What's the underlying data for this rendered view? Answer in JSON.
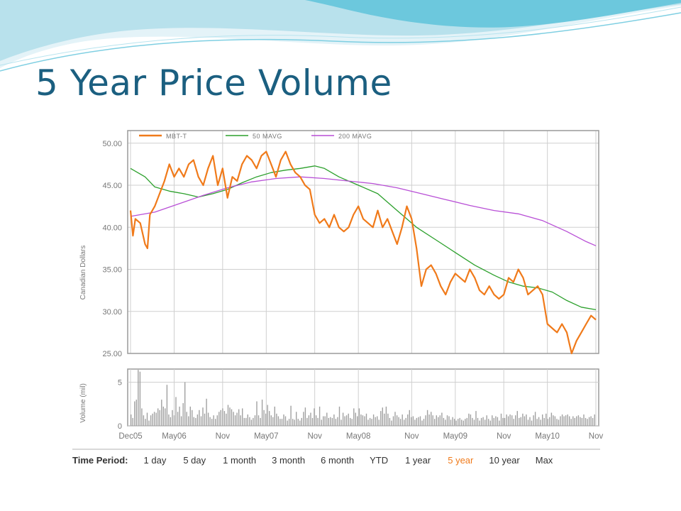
{
  "slide": {
    "title": "5 Year Price Volume"
  },
  "colors": {
    "title": "#1b5f80",
    "price": "#f07a1a",
    "ma50": "#2ca02c",
    "ma200": "#b84fd6",
    "volume": "#a0a0a0",
    "grid": "#cfcfcf"
  },
  "chart_data": [
    {
      "type": "line",
      "title": "",
      "xlabel": "",
      "ylabel": "Canadian Dollars",
      "ylim": [
        25,
        51.5
      ],
      "y_ticks": [
        "50.00",
        "45.00",
        "40.00",
        "35.00",
        "30.00",
        "25.00"
      ],
      "grid": true,
      "legend_position": "top-left",
      "legend": [
        "MBT-T",
        "50 MAVG",
        "200 MAVG"
      ],
      "x_ticks": [
        "Dec05",
        "May06",
        "Nov",
        "May07",
        "Nov",
        "May08",
        "Nov",
        "May09",
        "Nov",
        "May10",
        "Nov"
      ],
      "series": [
        {
          "name": "MBT-T",
          "points": [
            [
              0,
              42.0
            ],
            [
              0.5,
              39.0
            ],
            [
              1,
              41.0
            ],
            [
              2,
              40.5
            ],
            [
              3,
              38.0
            ],
            [
              3.5,
              37.5
            ],
            [
              4,
              41.5
            ],
            [
              5,
              42.5
            ],
            [
              6,
              44.0
            ],
            [
              7,
              45.5
            ],
            [
              8,
              47.5
            ],
            [
              9,
              46.0
            ],
            [
              10,
              47.0
            ],
            [
              11,
              46.0
            ],
            [
              12,
              47.5
            ],
            [
              13,
              48.0
            ],
            [
              14,
              46.0
            ],
            [
              15,
              45.0
            ],
            [
              16,
              47.0
            ],
            [
              17,
              48.5
            ],
            [
              18,
              45.0
            ],
            [
              19,
              47.0
            ],
            [
              20,
              43.5
            ],
            [
              21,
              46.0
            ],
            [
              22,
              45.5
            ],
            [
              23,
              47.5
            ],
            [
              24,
              48.5
            ],
            [
              25,
              48.0
            ],
            [
              26,
              47.0
            ],
            [
              27,
              48.5
            ],
            [
              28,
              49.0
            ],
            [
              29,
              47.5
            ],
            [
              30,
              46.0
            ],
            [
              31,
              48.0
            ],
            [
              32,
              49.0
            ],
            [
              33,
              47.5
            ],
            [
              34,
              46.5
            ],
            [
              35,
              46.0
            ],
            [
              36,
              45.0
            ],
            [
              37,
              44.5
            ],
            [
              38,
              41.5
            ],
            [
              39,
              40.5
            ],
            [
              40,
              41.0
            ],
            [
              41,
              40.0
            ],
            [
              42,
              41.5
            ],
            [
              43,
              40.0
            ],
            [
              44,
              39.5
            ],
            [
              45,
              40.0
            ],
            [
              46,
              41.5
            ],
            [
              47,
              42.5
            ],
            [
              48,
              41.0
            ],
            [
              49,
              40.5
            ],
            [
              50,
              40.0
            ],
            [
              51,
              42.0
            ],
            [
              52,
              40.0
            ],
            [
              53,
              41.0
            ],
            [
              54,
              39.5
            ],
            [
              55,
              38.0
            ],
            [
              56,
              40.0
            ],
            [
              57,
              42.5
            ],
            [
              58,
              41.0
            ],
            [
              59,
              37.5
            ],
            [
              60,
              33.0
            ],
            [
              61,
              35.0
            ],
            [
              62,
              35.5
            ],
            [
              63,
              34.5
            ],
            [
              64,
              33.0
            ],
            [
              65,
              32.0
            ],
            [
              66,
              33.5
            ],
            [
              67,
              34.5
            ],
            [
              68,
              34.0
            ],
            [
              69,
              33.5
            ],
            [
              70,
              35.0
            ],
            [
              71,
              34.0
            ],
            [
              72,
              32.5
            ],
            [
              73,
              32.0
            ],
            [
              74,
              33.0
            ],
            [
              75,
              32.0
            ],
            [
              76,
              31.5
            ],
            [
              77,
              32.0
            ],
            [
              78,
              34.0
            ],
            [
              79,
              33.5
            ],
            [
              80,
              35.0
            ],
            [
              81,
              34.0
            ],
            [
              82,
              32.0
            ],
            [
              83,
              32.5
            ],
            [
              84,
              33.0
            ],
            [
              85,
              32.0
            ],
            [
              86,
              28.5
            ],
            [
              87,
              28.0
            ],
            [
              88,
              27.5
            ],
            [
              89,
              28.5
            ],
            [
              90,
              27.5
            ],
            [
              91,
              25.0
            ],
            [
              92,
              26.5
            ],
            [
              93,
              27.5
            ],
            [
              94,
              28.5
            ],
            [
              95,
              29.5
            ],
            [
              96,
              29.0
            ]
          ]
        },
        {
          "name": "50 MAVG",
          "points": [
            [
              0,
              47.0
            ],
            [
              3,
              46.0
            ],
            [
              5,
              44.8
            ],
            [
              8,
              44.3
            ],
            [
              11,
              44.0
            ],
            [
              14,
              43.6
            ],
            [
              17,
              44.0
            ],
            [
              20,
              44.5
            ],
            [
              23,
              45.3
            ],
            [
              26,
              46.0
            ],
            [
              29,
              46.5
            ],
            [
              32,
              46.8
            ],
            [
              35,
              47.0
            ],
            [
              38,
              47.3
            ],
            [
              40,
              47.0
            ],
            [
              43,
              46.0
            ],
            [
              47,
              45.0
            ],
            [
              51,
              44.0
            ],
            [
              55,
              42.0
            ],
            [
              59,
              40.0
            ],
            [
              63,
              38.5
            ],
            [
              67,
              37.0
            ],
            [
              71,
              35.5
            ],
            [
              75,
              34.3
            ],
            [
              78,
              33.5
            ],
            [
              81,
              33.0
            ],
            [
              84,
              32.8
            ],
            [
              87,
              32.3
            ],
            [
              90,
              31.3
            ],
            [
              93,
              30.5
            ],
            [
              96,
              30.2
            ]
          ]
        },
        {
          "name": "200 MAVG",
          "points": [
            [
              0,
              41.3
            ],
            [
              5,
              41.8
            ],
            [
              10,
              42.8
            ],
            [
              15,
              43.8
            ],
            [
              20,
              44.7
            ],
            [
              25,
              45.4
            ],
            [
              30,
              45.8
            ],
            [
              35,
              46.0
            ],
            [
              40,
              45.8
            ],
            [
              45,
              45.5
            ],
            [
              50,
              45.2
            ],
            [
              55,
              44.7
            ],
            [
              60,
              44.0
            ],
            [
              65,
              43.3
            ],
            [
              70,
              42.6
            ],
            [
              75,
              42.0
            ],
            [
              80,
              41.6
            ],
            [
              85,
              40.8
            ],
            [
              90,
              39.5
            ],
            [
              94,
              38.3
            ],
            [
              96,
              37.8
            ]
          ]
        }
      ]
    },
    {
      "type": "bar",
      "title": "",
      "xlabel": "",
      "ylabel": "Volume (mil)",
      "ylim": [
        0,
        6.5
      ],
      "y_ticks": [
        "5",
        "0"
      ],
      "grid": true,
      "x_ticks": [
        "Dec05",
        "May06",
        "Nov",
        "May07",
        "Nov",
        "May08",
        "Nov",
        "May09",
        "Nov",
        "May10",
        "Nov"
      ],
      "series": [
        {
          "name": "",
          "values": [
            1.3,
            0.9,
            2.8,
            3.0,
            6.4,
            6.2,
            2.0,
            1.2,
            0.8,
            1.5,
            0.6,
            1.2,
            1.4,
            1.6,
            1.5,
            2.0,
            1.8,
            3.0,
            2.2,
            2.0,
            4.7,
            1.3,
            1.0,
            1.8,
            1.2,
            3.3,
            1.6,
            2.2,
            1.1,
            2.6,
            5.0,
            1.6,
            1.1,
            2.2,
            1.8,
            1.0,
            0.9,
            1.3,
            1.8,
            1.1,
            2.1,
            1.4,
            3.1,
            1.5,
            1.0,
            0.8,
            1.2,
            0.8,
            1.2,
            1.6,
            1.8,
            2.0,
            1.7,
            1.4,
            2.4,
            2.1,
            1.9,
            1.6,
            1.2,
            1.5,
            1.9,
            1.2,
            2.0,
            0.9,
            0.9,
            1.3,
            1.0,
            0.7,
            0.9,
            1.2,
            2.8,
            1.2,
            0.9,
            3.0,
            1.8,
            1.4,
            2.4,
            1.7,
            1.2,
            1.0,
            2.2,
            1.4,
            1.1,
            0.8,
            0.8,
            1.3,
            1.1,
            0.6,
            0.8,
            2.3,
            0.8,
            0.7,
            1.6,
            0.8,
            0.6,
            0.9,
            1.6,
            2.1,
            0.9,
            1.2,
            1.5,
            0.9,
            2.0,
            1.2,
            0.9,
            2.2,
            0.7,
            1.1,
            1.1,
            1.5,
            0.9,
            1.0,
            0.9,
            1.3,
            0.8,
            1.0,
            2.2,
            0.7,
            1.5,
            1.1,
            1.2,
            1.4,
            0.9,
            0.8,
            2.0,
            1.5,
            1.1,
            2.0,
            1.3,
            1.2,
            1.1,
            1.4,
            0.7,
            0.9,
            0.8,
            1.3,
            1.0,
            1.1,
            0.7,
            1.7,
            2.1,
            1.4,
            2.2,
            1.4,
            0.9,
            0.6,
            1.1,
            1.6,
            1.2,
            1.0,
            0.8,
            1.3,
            0.7,
            0.9,
            1.3,
            1.8,
            1.0,
            1.1,
            0.7,
            0.9,
            1.0,
            1.1,
            0.6,
            0.8,
            1.2,
            1.8,
            1.3,
            1.6,
            1.2,
            0.8,
            1.2,
            1.0,
            1.2,
            1.5,
            0.9,
            0.7,
            1.2,
            1.1,
            0.7,
            1.0,
            0.8,
            0.6,
            0.8,
            0.9,
            0.7,
            0.6,
            0.8,
            0.9,
            1.4,
            1.3,
            0.9,
            0.7,
            1.7,
            0.9,
            0.6,
            0.9,
            1.0,
            0.7,
            1.2,
            0.8,
            0.6,
            1.2,
            0.9,
            1.1,
            1.0,
            0.6,
            1.4,
            0.9,
            0.9,
            1.3,
            1.1,
            1.3,
            1.2,
            0.8,
            1.2,
            1.7,
            0.9,
            1.0,
            1.4,
            1.1,
            1.3,
            0.7,
            1.0,
            0.6,
            1.2,
            1.6,
            0.8,
            1.0,
            0.7,
            1.3,
            0.9,
            1.4,
            0.8,
            1.0,
            1.5,
            1.2,
            1.1,
            0.8,
            0.7,
            1.1,
            1.3,
            1.1,
            1.2,
            1.3,
            1.1,
            0.8,
            1.1,
            0.9,
            1.1,
            1.2,
            1.0,
            0.9,
            1.3,
            0.9,
            0.8,
            1.0,
            1.1,
            0.9,
            1.3
          ]
        }
      ]
    }
  ],
  "time_period": {
    "label": "Time Period:",
    "options": [
      "1 day",
      "5 day",
      "1 month",
      "3 month",
      "6 month",
      "YTD",
      "1 year",
      "5 year",
      "10 year",
      "Max"
    ],
    "selected": "5 year"
  }
}
